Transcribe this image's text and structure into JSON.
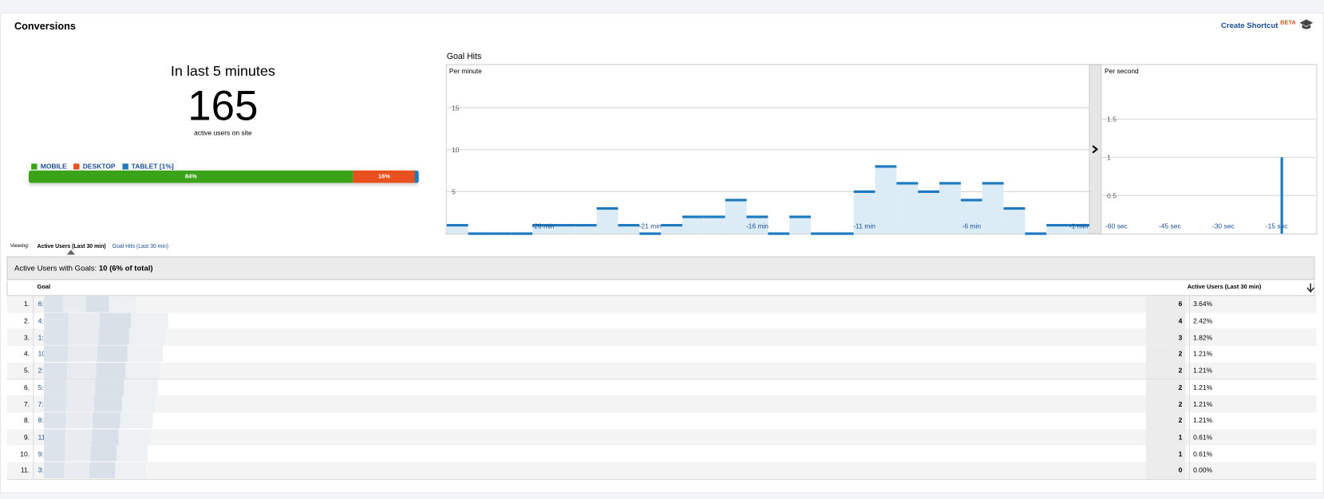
{
  "header": {
    "title": "Conversions",
    "shortcut": "Create Shortcut",
    "beta": "BETA"
  },
  "summary": {
    "heading": "In last 5 minutes",
    "value": 165,
    "caption": "active users on site"
  },
  "devices": {
    "series": [
      {
        "name": "MOBILE",
        "color": "#3ba31a",
        "value": 84,
        "value_label": "84%"
      },
      {
        "name": "DESKTOP",
        "color": "#e8501e",
        "value": 16,
        "value_label": "16%"
      },
      {
        "name": "TABLET [1%]",
        "color": "#1e7abf",
        "value": 1
      }
    ]
  },
  "goal_hits": {
    "title": "Goal Hits"
  },
  "chart_data": [
    {
      "type": "bar",
      "subtitle": "Per minute",
      "color": "#1e7abf",
      "fill": "#dcecf7",
      "categories": [
        null,
        null,
        null,
        null,
        "-26 min",
        null,
        null,
        null,
        null,
        "-21 min",
        null,
        null,
        null,
        null,
        "-16 min",
        null,
        null,
        null,
        null,
        "-11 min",
        null,
        null,
        null,
        null,
        "-6 min",
        null,
        null,
        null,
        null,
        "-1 min"
      ],
      "values": [
        1,
        0,
        0,
        0,
        1,
        1,
        1,
        3,
        1,
        0,
        1,
        2,
        2,
        4,
        2,
        0,
        2,
        0,
        0,
        5,
        8,
        6,
        5,
        6,
        4,
        6,
        3,
        0,
        1,
        1
      ],
      "ylim": [
        0,
        20
      ],
      "yticks": [
        5,
        10,
        15
      ],
      "grid": true
    },
    {
      "type": "bar",
      "subtitle": "Per second",
      "color": "#1e7abf",
      "x": [
        -60,
        -59,
        -58,
        -57,
        -56,
        -55,
        -54,
        -53,
        -52,
        -51,
        -50,
        -49,
        -48,
        -47,
        -46,
        -45,
        -44,
        -43,
        -42,
        -41,
        -40,
        -39,
        -38,
        -37,
        -36,
        -35,
        -34,
        -33,
        -32,
        -31,
        -30,
        -29,
        -28,
        -27,
        -26,
        -25,
        -24,
        -23,
        -22,
        -21,
        -20,
        -19,
        -18,
        -17,
        -16,
        -15,
        -14,
        -13,
        -12,
        -11,
        -10,
        -9,
        -8,
        -7,
        -6,
        -5,
        -4,
        -3,
        -2,
        -1
      ],
      "values": [
        0,
        0,
        0,
        0,
        0,
        0,
        0,
        0,
        0,
        0,
        0,
        0,
        0,
        0,
        0,
        0,
        0,
        0,
        0,
        0,
        0,
        0,
        0,
        0,
        0,
        0,
        0,
        0,
        0,
        0,
        0,
        0,
        0,
        0,
        0,
        0,
        0,
        0,
        0,
        0,
        0,
        0,
        0,
        0,
        0,
        0,
        0,
        0,
        0,
        0,
        1,
        0,
        0,
        0,
        0,
        0,
        0,
        0,
        0,
        0
      ],
      "xlim": [
        -60,
        0
      ],
      "xticks": [
        {
          "value": -60,
          "label": "-60 sec"
        },
        {
          "value": -45,
          "label": "-45 sec"
        },
        {
          "value": -30,
          "label": "-30 sec"
        },
        {
          "value": -15,
          "label": "-15 sec"
        }
      ],
      "ylim": [
        0,
        2.2
      ],
      "yticks": [
        0.5,
        1,
        1.5
      ],
      "grid": true
    }
  ],
  "viewing": {
    "label": "Viewing:",
    "tabs": [
      "Active Users (Last 30 min)",
      "Goal Hits (Last 30 min)"
    ]
  },
  "table": {
    "summary_label": "Active Users with Goals:",
    "summary_value": "10 (6% of total)",
    "columns": [
      "Goal",
      "Active Users (Last 30 min)"
    ],
    "rows": [
      [
        "1.",
        "6:",
        6,
        "3.64%"
      ],
      [
        "2.",
        "4:",
        4,
        "2.42%"
      ],
      [
        "3.",
        "1:",
        3,
        "1.82%"
      ],
      [
        "4.",
        "10",
        2,
        "1.21%"
      ],
      [
        "5.",
        "2:",
        2,
        "1.21%"
      ],
      [
        "6.",
        "5:",
        2,
        "1.21%"
      ],
      [
        "7.",
        "7:",
        2,
        "1.21%"
      ],
      [
        "8.",
        "8:",
        2,
        "1.21%"
      ],
      [
        "9.",
        "11",
        1,
        "0.61%"
      ],
      [
        "10.",
        "9:",
        1,
        "0.61%"
      ],
      [
        "11.",
        "3:",
        0,
        "0.00%"
      ]
    ]
  }
}
